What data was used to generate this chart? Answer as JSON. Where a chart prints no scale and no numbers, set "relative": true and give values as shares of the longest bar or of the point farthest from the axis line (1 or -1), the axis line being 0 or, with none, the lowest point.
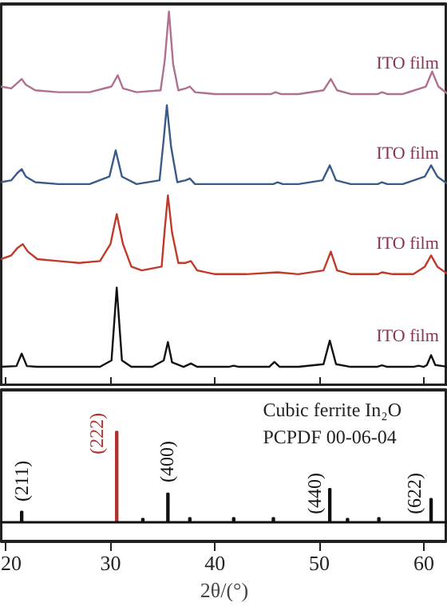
{
  "chart_data": [
    {
      "type": "line",
      "relative": true,
      "xlim": [
        19.5,
        62.3
      ],
      "xticks": [
        20,
        30,
        40,
        50,
        60
      ],
      "tick_labels": false,
      "grid": false,
      "series": [
        {
          "color": "#b07090",
          "x": [
            19.5,
            20.5,
            21.1,
            21.5,
            21.9,
            22.8,
            25,
            28,
            30.1,
            30.7,
            31.2,
            32.5,
            34.8,
            35.2,
            35.6,
            36.0,
            36.5,
            37.2,
            37.6,
            38.1,
            40,
            43,
            45.4,
            45.8,
            46.3,
            48,
            50.4,
            51.1,
            51.7,
            53,
            55.6,
            56,
            56.5,
            58,
            60.2,
            60.8,
            61.4,
            62.3
          ],
          "values": [
            0.8,
            0.795,
            0.81,
            0.82,
            0.805,
            0.79,
            0.785,
            0.785,
            0.8,
            0.83,
            0.795,
            0.785,
            0.79,
            0.87,
            1.0,
            0.86,
            0.79,
            0.795,
            0.8,
            0.785,
            0.78,
            0.78,
            0.78,
            0.785,
            0.78,
            0.78,
            0.79,
            0.82,
            0.79,
            0.78,
            0.78,
            0.785,
            0.78,
            0.78,
            0.8,
            0.84,
            0.8,
            0.78
          ]
        },
        {
          "color": "#3a5a8a",
          "x": [
            19.5,
            20.5,
            21.1,
            21.5,
            21.9,
            22.8,
            25,
            28,
            29.9,
            30.5,
            31.1,
            32.5,
            34.7,
            35.1,
            35.4,
            35.8,
            36.4,
            37.2,
            37.6,
            38.1,
            40,
            43,
            45.6,
            46,
            46.5,
            48,
            50.3,
            51.0,
            51.6,
            53,
            55.6,
            56,
            56.5,
            58,
            60.1,
            60.7,
            61.3,
            62.3
          ],
          "values": [
            0.545,
            0.55,
            0.57,
            0.58,
            0.56,
            0.545,
            0.54,
            0.54,
            0.56,
            0.63,
            0.56,
            0.54,
            0.55,
            0.66,
            0.75,
            0.64,
            0.545,
            0.55,
            0.555,
            0.54,
            0.54,
            0.54,
            0.54,
            0.545,
            0.54,
            0.54,
            0.55,
            0.59,
            0.55,
            0.54,
            0.54,
            0.545,
            0.54,
            0.54,
            0.56,
            0.59,
            0.56,
            0.54
          ]
        },
        {
          "color": "#c0392b",
          "x": [
            19.5,
            20.5,
            21.1,
            21.6,
            22.1,
            23,
            25,
            27,
            29,
            30.0,
            30.6,
            31.2,
            32,
            33,
            34.9,
            35.2,
            35.5,
            35.9,
            36.5,
            37.2,
            37.7,
            38.3,
            40,
            43,
            46,
            48,
            50.4,
            51.1,
            51.7,
            53,
            55.6,
            56,
            57,
            59,
            60.1,
            60.7,
            61.3,
            62.3
          ],
          "values": [
            0.34,
            0.35,
            0.37,
            0.38,
            0.36,
            0.34,
            0.335,
            0.33,
            0.335,
            0.38,
            0.46,
            0.38,
            0.32,
            0.31,
            0.32,
            0.42,
            0.51,
            0.41,
            0.33,
            0.33,
            0.335,
            0.31,
            0.3,
            0.3,
            0.305,
            0.3,
            0.31,
            0.36,
            0.31,
            0.3,
            0.3,
            0.305,
            0.3,
            0.3,
            0.32,
            0.35,
            0.32,
            0.3
          ]
        },
        {
          "color": "#111111",
          "x": [
            19.5,
            21.0,
            21.5,
            22.0,
            23,
            26,
            29,
            30.1,
            30.6,
            31.1,
            32,
            34,
            35.1,
            35.5,
            35.9,
            37,
            37.7,
            38.3,
            41.3,
            41.8,
            42.3,
            45.2,
            45.7,
            46.2,
            48,
            50.4,
            51.0,
            51.6,
            53,
            55.5,
            56,
            56.5,
            59,
            59.5,
            60.0,
            60.3,
            60.7,
            61.1,
            62.3
          ],
          "values": [
            0.053,
            0.055,
            0.088,
            0.055,
            0.053,
            0.053,
            0.053,
            0.07,
            0.264,
            0.07,
            0.053,
            0.053,
            0.07,
            0.119,
            0.065,
            0.053,
            0.062,
            0.053,
            0.053,
            0.056,
            0.053,
            0.053,
            0.066,
            0.053,
            0.053,
            0.06,
            0.123,
            0.06,
            0.053,
            0.053,
            0.057,
            0.053,
            0.053,
            0.056,
            0.053,
            0.058,
            0.084,
            0.058,
            0.053
          ]
        }
      ],
      "annotations": [
        "ITO film",
        "ITO film",
        "ITO film",
        "ITO film"
      ]
    },
    {
      "type": "bar",
      "relative": true,
      "xlim": [
        19.5,
        62.3
      ],
      "xticks": [
        20,
        30,
        40,
        50,
        60
      ],
      "tick_labels": "x",
      "grid": false,
      "xlabel": "2θ/(°)",
      "x": [
        21.5,
        30.6,
        33.1,
        35.5,
        37.6,
        41.8,
        45.6,
        51.0,
        52.7,
        55.7,
        60.7
      ],
      "values": [
        0.12,
        1.0,
        0.04,
        0.32,
        0.05,
        0.05,
        0.05,
        0.37,
        0.04,
        0.05,
        0.26
      ],
      "colors": [
        "#111111",
        "#b03030",
        "#111111",
        "#111111",
        "#111111",
        "#111111",
        "#111111",
        "#111111",
        "#111111",
        "#111111",
        "#111111"
      ],
      "ref_lines": [
        {
          "axis": "y",
          "value": 0,
          "color": "#111111"
        }
      ],
      "annotations": [
        "Cubic ferrite In₂O",
        "PCPDF 00-06-04",
        "(211)",
        "(222)",
        "(400)",
        "(440)",
        "(622)"
      ]
    }
  ]
}
